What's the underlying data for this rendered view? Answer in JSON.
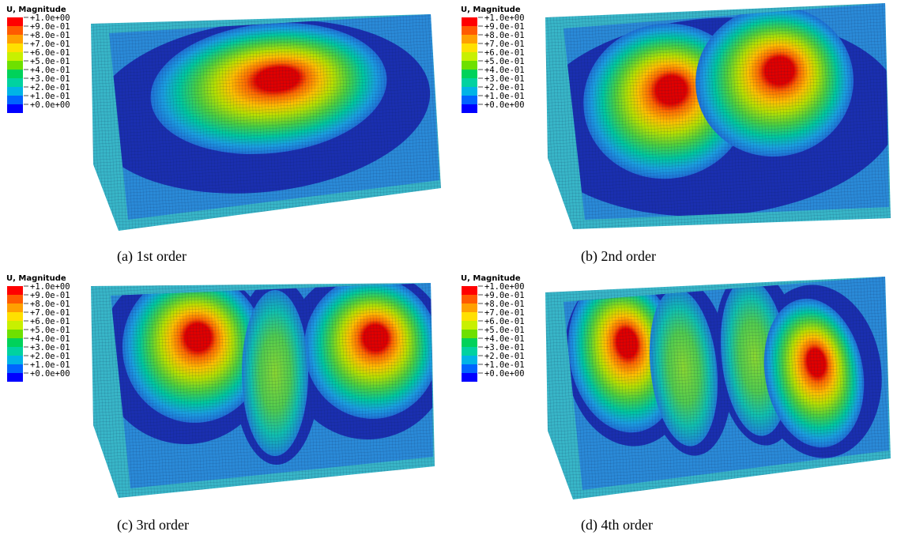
{
  "panels": [
    {
      "legend": {
        "title": "U, Magnitude",
        "labels": [
          "+1.0e+00",
          "+9.0e-01",
          "+8.0e-01",
          "+7.0e-01",
          "+6.0e-01",
          "+5.0e-01",
          "+4.0e-01",
          "+3.0e-01",
          "+2.0e-01",
          "+1.0e-01",
          "+0.0e+00"
        ]
      },
      "caption": "(a) 1st order"
    },
    {
      "legend": {
        "title": "U, Magnitude",
        "labels": [
          "+1.0e+00",
          "+9.0e-01",
          "+8.0e-01",
          "+7.0e-01",
          "+6.0e-01",
          "+5.0e-01",
          "+4.0e-01",
          "+3.0e-01",
          "+2.0e-01",
          "+1.0e-01",
          "+0.0e+00"
        ]
      },
      "caption": "(b) 2nd order"
    },
    {
      "legend": {
        "title": "U, Magnitude",
        "labels": [
          "+1.0e+00",
          "+9.0e-01",
          "+8.0e-01",
          "+7.0e-01",
          "+6.0e-01",
          "+5.0e-01",
          "+4.0e-01",
          "+3.0e-01",
          "+2.0e-01",
          "+1.0e-01",
          "+0.0e+00"
        ]
      },
      "caption": "(c) 3rd order"
    },
    {
      "legend": {
        "title": "U, Magnitude",
        "labels": [
          "+1.0e+00",
          "+9.0e-01",
          "+8.0e-01",
          "+7.0e-01",
          "+6.0e-01",
          "+5.0e-01",
          "+4.0e-01",
          "+3.0e-01",
          "+2.0e-01",
          "+1.0e-01",
          "+0.0e+00"
        ]
      },
      "caption": "(d) 4th order"
    }
  ]
}
